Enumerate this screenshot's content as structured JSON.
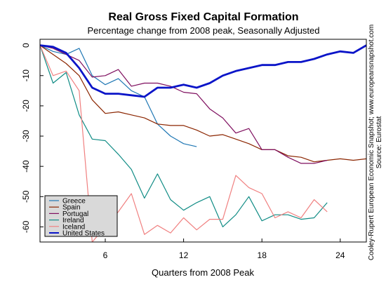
{
  "chart_data": {
    "type": "line",
    "title": "Real Gross Fixed Capital Formation",
    "subtitle": "Percentage change from 2008 peak, Seasonally Adjusted",
    "xlabel": "Quarters from 2008 Peak",
    "ylabel": "",
    "xlim": [
      1,
      26
    ],
    "ylim": [
      -65,
      2
    ],
    "x_ticks": [
      6,
      12,
      18,
      24
    ],
    "y_ticks": [
      0,
      -10,
      -20,
      -30,
      -40,
      -50,
      -60
    ],
    "grid": false,
    "legend_position": "bottom-left",
    "side_note": [
      "Cooley-Rupert European Economic Snapshot; www.europeansnapshot.com",
      "Source: Eurostat"
    ],
    "series": [
      {
        "name": "Greece",
        "color": "#1f77b4",
        "width": 1.2,
        "x": [
          1,
          2,
          3,
          4,
          5,
          6,
          7,
          8,
          9,
          10,
          11,
          12,
          13
        ],
        "y": [
          0,
          -2,
          -3,
          -1,
          -10,
          -13,
          -11,
          -15,
          -17,
          -26,
          -30,
          -32.5,
          -33.5
        ]
      },
      {
        "name": "Spain",
        "color": "#8b2500",
        "width": 1.2,
        "x": [
          1,
          2,
          3,
          4,
          5,
          6,
          7,
          8,
          9,
          10,
          11,
          12,
          13,
          14,
          15,
          16,
          17,
          18,
          19,
          20,
          21,
          22,
          23,
          24,
          25,
          26
        ],
        "y": [
          0,
          -3,
          -6,
          -10,
          -18,
          -22.5,
          -22,
          -23,
          -24,
          -26,
          -26.5,
          -26.5,
          -28,
          -30,
          -29.5,
          -31,
          -32.5,
          -34.5,
          -34.5,
          -36.5,
          -37,
          -38.5,
          -38,
          -37.5,
          -38,
          -37.5
        ]
      },
      {
        "name": "Portugal",
        "color": "#7f0f5f",
        "width": 1.2,
        "x": [
          1,
          2,
          3,
          4,
          5,
          6,
          7,
          8,
          9,
          10,
          11,
          12,
          13,
          14,
          15,
          16,
          17,
          18,
          19,
          20,
          21,
          22,
          23
        ],
        "y": [
          0,
          -1,
          -3,
          -5,
          -10.5,
          -10,
          -8,
          -13.5,
          -12.5,
          -12.5,
          -13.5,
          -15.5,
          -16,
          -21,
          -24,
          -29,
          -27.5,
          -34.5,
          -34.5,
          -37,
          -39,
          -39,
          -38
        ]
      },
      {
        "name": "Ireland",
        "color": "#108c85",
        "width": 1.2,
        "x": [
          1,
          2,
          3,
          4,
          5,
          6,
          7,
          8,
          9,
          10,
          11,
          12,
          13,
          14,
          15,
          16,
          17,
          18,
          19,
          20,
          21,
          22,
          23
        ],
        "y": [
          0,
          -12.5,
          -9,
          -23,
          -31,
          -31.5,
          -36,
          -41,
          -50.5,
          -42.5,
          -51,
          -54.5,
          -52,
          -50,
          -60,
          -56,
          -50,
          -58,
          -56,
          -56,
          -57.5,
          -57,
          -52
        ]
      },
      {
        "name": "Iceland",
        "color": "#f08080",
        "width": 1.2,
        "x": [
          1,
          2,
          3,
          4,
          5,
          6,
          7,
          8,
          9,
          10,
          11,
          12,
          13,
          14,
          15,
          16,
          17,
          18,
          19,
          20,
          21,
          22,
          23
        ],
        "y": [
          0,
          -10,
          -8.5,
          -15,
          -65,
          -60,
          -55,
          -49,
          -62.5,
          -59.5,
          -62,
          -57,
          -61,
          -57.5,
          -57.5,
          -43,
          -47,
          -49,
          -57,
          -55,
          -57,
          -51,
          -55
        ]
      },
      {
        "name": "United States",
        "color": "#0a14c8",
        "width": 2.8,
        "x": [
          1,
          2,
          3,
          4,
          5,
          6,
          7,
          8,
          9,
          10,
          11,
          12,
          13,
          14,
          15,
          16,
          17,
          18,
          19,
          20,
          21,
          22,
          23,
          24,
          25,
          26
        ],
        "y": [
          0,
          -0.5,
          -2.5,
          -7.5,
          -14,
          -16,
          -16,
          -16.5,
          -17,
          -14,
          -14,
          -13,
          -14,
          -12.5,
          -10,
          -8.5,
          -7.5,
          -6.5,
          -6.5,
          -5.5,
          -5.5,
          -4.5,
          -3,
          -2,
          -2.5,
          0
        ]
      }
    ]
  }
}
